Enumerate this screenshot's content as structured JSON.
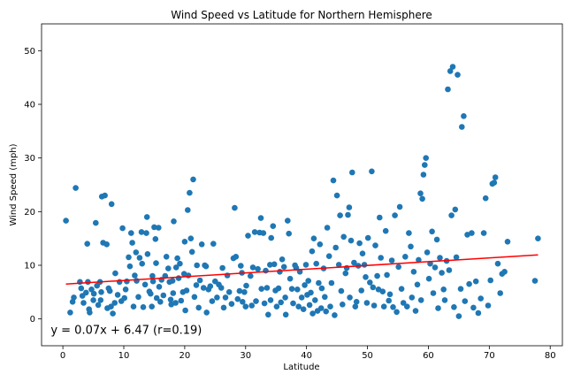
{
  "chart_data": {
    "type": "scatter",
    "title": "Wind Speed vs Latitude for Northern Hemisphere",
    "xlabel": "Latitude",
    "ylabel": "Wind Speed (mph)",
    "xlim": [
      -3.5,
      82
    ],
    "ylim": [
      -5,
      55
    ],
    "xticks": [
      0,
      10,
      20,
      30,
      40,
      50,
      60,
      70,
      80
    ],
    "yticks": [
      0,
      10,
      20,
      30,
      40,
      50
    ],
    "grid": false,
    "point_color": "#1f77b4",
    "line_color": "#ff0000",
    "annotation_color": "#ff0000",
    "regression": {
      "slope": 0.07,
      "intercept": 6.47,
      "x_range": [
        0.5,
        78
      ],
      "label": "y = 0.07x + 6.47 (r=0.19)",
      "label_position": [
        -2,
        -2.8
      ]
    },
    "points": [
      [
        0.5,
        18.3
      ],
      [
        1.2,
        1.2
      ],
      [
        1.6,
        3.2
      ],
      [
        1.8,
        4.0
      ],
      [
        2.1,
        24.4
      ],
      [
        2.8,
        6.9
      ],
      [
        3.0,
        5.7
      ],
      [
        3.2,
        4.3
      ],
      [
        3.4,
        3.0
      ],
      [
        3.8,
        4.9
      ],
      [
        4.0,
        14.0
      ],
      [
        4.1,
        6.9
      ],
      [
        4.3,
        1.8
      ],
      [
        4.4,
        1.2
      ],
      [
        4.7,
        5.5
      ],
      [
        5.0,
        3.5
      ],
      [
        5.1,
        4.7
      ],
      [
        5.4,
        17.9
      ],
      [
        5.6,
        6.2
      ],
      [
        5.8,
        2.6
      ],
      [
        6.1,
        6.9
      ],
      [
        6.2,
        3.5
      ],
      [
        6.3,
        5.0
      ],
      [
        6.4,
        22.8
      ],
      [
        6.6,
        14.2
      ],
      [
        6.9,
        23.0
      ],
      [
        7.2,
        13.9
      ],
      [
        7.3,
        2.0
      ],
      [
        7.5,
        5.7
      ],
      [
        7.7,
        5.2
      ],
      [
        7.9,
        2.3
      ],
      [
        8.0,
        21.4
      ],
      [
        8.2,
        1.0
      ],
      [
        8.5,
        3.0
      ],
      [
        8.6,
        8.5
      ],
      [
        9.0,
        4.5
      ],
      [
        9.3,
        6.9
      ],
      [
        9.6,
        3.3
      ],
      [
        9.8,
        16.9
      ],
      [
        10.1,
        3.9
      ],
      [
        10.3,
        5.5
      ],
      [
        10.5,
        7.0
      ],
      [
        10.8,
        11.5
      ],
      [
        11.0,
        9.8
      ],
      [
        11.2,
        16.0
      ],
      [
        11.4,
        14.2
      ],
      [
        11.6,
        2.3
      ],
      [
        11.8,
        8.1
      ],
      [
        12.0,
        12.4
      ],
      [
        12.1,
        7.1
      ],
      [
        12.4,
        4.1
      ],
      [
        12.6,
        11.4
      ],
      [
        12.9,
        16.2
      ],
      [
        13.0,
        10.3
      ],
      [
        13.2,
        2.2
      ],
      [
        13.5,
        6.4
      ],
      [
        13.7,
        16.0
      ],
      [
        13.8,
        19.0
      ],
      [
        13.9,
        12.1
      ],
      [
        14.2,
        5.1
      ],
      [
        14.4,
        4.7
      ],
      [
        14.6,
        2.3
      ],
      [
        14.7,
        8.0
      ],
      [
        14.8,
        7.0
      ],
      [
        15.0,
        17.1
      ],
      [
        15.2,
        14.9
      ],
      [
        15.3,
        10.4
      ],
      [
        15.4,
        3.9
      ],
      [
        15.7,
        17.0
      ],
      [
        15.8,
        6.0
      ],
      [
        16.0,
        3.2
      ],
      [
        16.2,
        7.3
      ],
      [
        16.5,
        4.4
      ],
      [
        16.8,
        8.0
      ],
      [
        17.0,
        11.6
      ],
      [
        17.3,
        9.4
      ],
      [
        17.5,
        6.9
      ],
      [
        17.7,
        3.6
      ],
      [
        17.8,
        2.7
      ],
      [
        18.0,
        7.1
      ],
      [
        18.1,
        4.8
      ],
      [
        18.2,
        18.2
      ],
      [
        18.5,
        3.0
      ],
      [
        18.6,
        9.6
      ],
      [
        18.8,
        11.3
      ],
      [
        19.0,
        7.6
      ],
      [
        19.2,
        10.3
      ],
      [
        19.4,
        3.4
      ],
      [
        19.7,
        5.0
      ],
      [
        19.9,
        8.4
      ],
      [
        20.0,
        14.4
      ],
      [
        20.1,
        1.6
      ],
      [
        20.3,
        5.3
      ],
      [
        20.5,
        20.3
      ],
      [
        20.6,
        8.1
      ],
      [
        20.8,
        23.5
      ],
      [
        21.0,
        15.0
      ],
      [
        21.2,
        12.5
      ],
      [
        21.4,
        26.0
      ],
      [
        21.6,
        4.1
      ],
      [
        21.9,
        6.3
      ],
      [
        22.0,
        10.0
      ],
      [
        22.3,
        2.1
      ],
      [
        22.5,
        7.2
      ],
      [
        22.8,
        13.9
      ],
      [
        23.1,
        5.8
      ],
      [
        23.3,
        10.0
      ],
      [
        23.5,
        9.8
      ],
      [
        23.6,
        1.2
      ],
      [
        23.9,
        5.5
      ],
      [
        24.2,
        6.1
      ],
      [
        24.5,
        3.3
      ],
      [
        24.7,
        14.0
      ],
      [
        25.0,
        7.0
      ],
      [
        25.3,
        4.0
      ],
      [
        25.6,
        6.4
      ],
      [
        26.0,
        5.8
      ],
      [
        26.2,
        9.5
      ],
      [
        26.4,
        2.1
      ],
      [
        26.7,
        4.0
      ],
      [
        27.0,
        8.1
      ],
      [
        27.3,
        5.0
      ],
      [
        27.7,
        2.8
      ],
      [
        28.0,
        11.3
      ],
      [
        28.2,
        20.7
      ],
      [
        28.4,
        11.6
      ],
      [
        28.7,
        3.7
      ],
      [
        29.0,
        5.2
      ],
      [
        29.2,
        9.9
      ],
      [
        29.4,
        8.6
      ],
      [
        29.5,
        3.2
      ],
      [
        29.8,
        5.0
      ],
      [
        30.0,
        2.3
      ],
      [
        30.1,
        6.2
      ],
      [
        30.4,
        15.5
      ],
      [
        30.8,
        8.0
      ],
      [
        31.0,
        2.5
      ],
      [
        31.2,
        9.6
      ],
      [
        31.5,
        16.2
      ],
      [
        31.7,
        3.3
      ],
      [
        32.0,
        9.3
      ],
      [
        32.3,
        16.1
      ],
      [
        32.5,
        18.8
      ],
      [
        32.6,
        5.6
      ],
      [
        32.9,
        16.0
      ],
      [
        33.1,
        2.9
      ],
      [
        33.3,
        9.0
      ],
      [
        33.5,
        5.8
      ],
      [
        33.7,
        0.8
      ],
      [
        34.0,
        10.1
      ],
      [
        34.1,
        3.5
      ],
      [
        34.2,
        15.1
      ],
      [
        34.5,
        17.3
      ],
      [
        34.7,
        10.2
      ],
      [
        34.9,
        5.3
      ],
      [
        35.1,
        2.3
      ],
      [
        35.4,
        5.7
      ],
      [
        35.6,
        8.8
      ],
      [
        35.8,
        3.1
      ],
      [
        36.0,
        11.1
      ],
      [
        36.3,
        9.7
      ],
      [
        36.5,
        4.0
      ],
      [
        36.6,
        0.8
      ],
      [
        36.9,
        18.3
      ],
      [
        37.1,
        15.9
      ],
      [
        37.3,
        7.5
      ],
      [
        37.6,
        5.6
      ],
      [
        37.8,
        2.9
      ],
      [
        38.1,
        10.0
      ],
      [
        38.3,
        9.5
      ],
      [
        38.5,
        5.5
      ],
      [
        38.7,
        2.3
      ],
      [
        38.9,
        8.8
      ],
      [
        39.2,
        4.0
      ],
      [
        39.5,
        1.8
      ],
      [
        39.7,
        6.3
      ],
      [
        39.9,
        10.1
      ],
      [
        40.1,
        4.5
      ],
      [
        40.3,
        7.1
      ],
      [
        40.5,
        2.6
      ],
      [
        40.7,
        4.9
      ],
      [
        40.9,
        12.6
      ],
      [
        41.0,
        1.0
      ],
      [
        41.2,
        15.0
      ],
      [
        41.4,
        3.5
      ],
      [
        41.6,
        10.3
      ],
      [
        41.8,
        1.5
      ],
      [
        42.0,
        6.7
      ],
      [
        42.2,
        13.9
      ],
      [
        42.4,
        2.0
      ],
      [
        42.5,
        5.7
      ],
      [
        42.8,
        9.4
      ],
      [
        43.0,
        4.1
      ],
      [
        43.2,
        1.4
      ],
      [
        43.4,
        17.0
      ],
      [
        43.7,
        11.7
      ],
      [
        43.9,
        2.3
      ],
      [
        44.1,
        6.7
      ],
      [
        44.4,
        25.8
      ],
      [
        44.6,
        0.7
      ],
      [
        44.8,
        13.3
      ],
      [
        45.0,
        23.0
      ],
      [
        45.3,
        10.1
      ],
      [
        45.5,
        19.3
      ],
      [
        45.7,
        5.2
      ],
      [
        45.9,
        2.7
      ],
      [
        46.1,
        15.3
      ],
      [
        46.4,
        8.5
      ],
      [
        46.6,
        9.5
      ],
      [
        46.8,
        19.4
      ],
      [
        47.0,
        20.8
      ],
      [
        47.1,
        4.0
      ],
      [
        47.3,
        14.6
      ],
      [
        47.5,
        27.3
      ],
      [
        47.8,
        10.5
      ],
      [
        48.0,
        2.3
      ],
      [
        48.2,
        3.2
      ],
      [
        48.5,
        9.9
      ],
      [
        48.7,
        14.1
      ],
      [
        49.0,
        5.3
      ],
      [
        49.2,
        12.2
      ],
      [
        49.5,
        10.1
      ],
      [
        49.7,
        7.8
      ],
      [
        49.9,
        3.0
      ],
      [
        50.1,
        15.1
      ],
      [
        50.4,
        6.8
      ],
      [
        50.7,
        27.5
      ],
      [
        50.9,
        5.9
      ],
      [
        51.1,
        2.5
      ],
      [
        51.3,
        13.7
      ],
      [
        51.6,
        8.0
      ],
      [
        51.8,
        5.5
      ],
      [
        52.0,
        18.9
      ],
      [
        52.2,
        11.4
      ],
      [
        52.5,
        5.1
      ],
      [
        52.7,
        2.3
      ],
      [
        53.0,
        16.4
      ],
      [
        53.2,
        8.2
      ],
      [
        53.5,
        3.4
      ],
      [
        53.7,
        4.6
      ],
      [
        54.0,
        10.9
      ],
      [
        54.2,
        2.2
      ],
      [
        54.5,
        19.3
      ],
      [
        54.8,
        1.3
      ],
      [
        55.1,
        9.7
      ],
      [
        55.3,
        20.9
      ],
      [
        55.6,
        5.6
      ],
      [
        55.9,
        3.0
      ],
      [
        56.2,
        11.6
      ],
      [
        56.5,
        2.3
      ],
      [
        56.8,
        16.0
      ],
      [
        57.1,
        13.5
      ],
      [
        57.3,
        4.0
      ],
      [
        57.6,
        8.8
      ],
      [
        57.9,
        1.5
      ],
      [
        58.2,
        6.4
      ],
      [
        58.4,
        11.0
      ],
      [
        58.7,
        23.4
      ],
      [
        58.8,
        3.5
      ],
      [
        59.0,
        22.4
      ],
      [
        59.2,
        26.9
      ],
      [
        59.4,
        28.7
      ],
      [
        59.6,
        30.0
      ],
      [
        59.8,
        12.4
      ],
      [
        60.1,
        7.5
      ],
      [
        60.3,
        10.3
      ],
      [
        60.6,
        16.3
      ],
      [
        60.8,
        4.8
      ],
      [
        61.1,
        9.6
      ],
      [
        61.4,
        14.8
      ],
      [
        61.6,
        2.0
      ],
      [
        61.9,
        11.4
      ],
      [
        62.2,
        8.6
      ],
      [
        62.5,
        5.5
      ],
      [
        62.7,
        3.5
      ],
      [
        63.0,
        10.8
      ],
      [
        63.2,
        42.8
      ],
      [
        63.4,
        9.1
      ],
      [
        63.6,
        46.2
      ],
      [
        63.8,
        19.3
      ],
      [
        64.0,
        47.0
      ],
      [
        64.2,
        2.2
      ],
      [
        64.4,
        20.4
      ],
      [
        64.6,
        11.5
      ],
      [
        64.8,
        45.5
      ],
      [
        65.0,
        0.5
      ],
      [
        65.3,
        5.6
      ],
      [
        65.5,
        35.8
      ],
      [
        65.8,
        37.8
      ],
      [
        66.0,
        3.3
      ],
      [
        66.4,
        15.7
      ],
      [
        66.7,
        6.5
      ],
      [
        67.1,
        16.0
      ],
      [
        67.4,
        2.1
      ],
      [
        67.8,
        7.0
      ],
      [
        68.2,
        1.1
      ],
      [
        68.6,
        3.8
      ],
      [
        69.1,
        16.0
      ],
      [
        69.4,
        22.5
      ],
      [
        69.8,
        2.5
      ],
      [
        70.2,
        7.2
      ],
      [
        70.5,
        25.2
      ],
      [
        70.8,
        25.4
      ],
      [
        71.0,
        26.4
      ],
      [
        71.4,
        10.3
      ],
      [
        71.8,
        4.8
      ],
      [
        72.1,
        8.4
      ],
      [
        72.5,
        8.8
      ],
      [
        73.0,
        14.4
      ],
      [
        77.5,
        7.1
      ],
      [
        78.0,
        15.0
      ]
    ]
  }
}
